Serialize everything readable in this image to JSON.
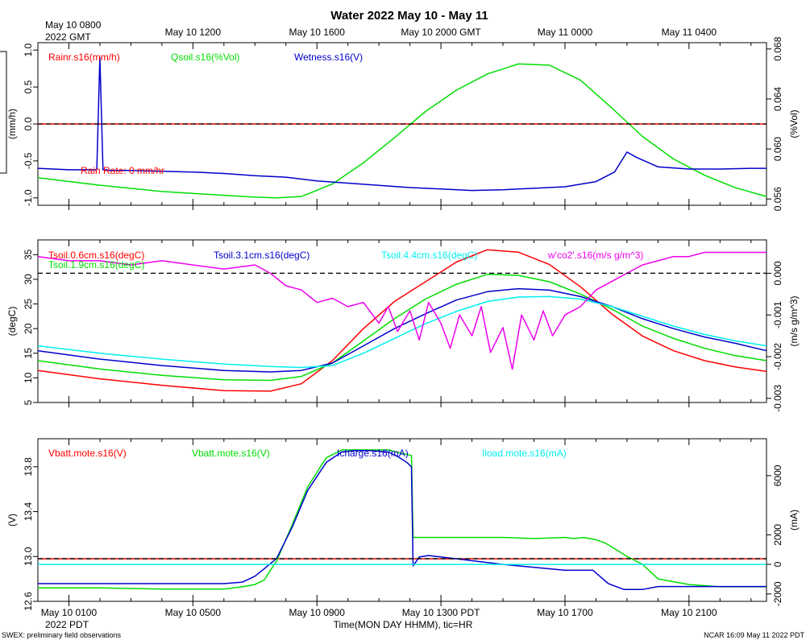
{
  "title": "Water 2022 May 10 - May 11",
  "top_axis": {
    "first_label": "May 10 0800",
    "first_sublabel": "2022 GMT",
    "labels": [
      "May 10 1200",
      "May 10 1600",
      "May 10 2000 GMT",
      "May 11 0000",
      "May 11 0400"
    ]
  },
  "bottom_axis": {
    "labels": [
      "May 10 0100",
      "May 10 0500",
      "May 10 0900",
      "May 10 1300 PDT",
      "May 10 1700",
      "May 10 2100"
    ],
    "sublabel": "2022 PDT",
    "xlabel": "Time(MON DAY HHMM), tic=HR"
  },
  "footer": {
    "left": "SWEX: preliminary field observations",
    "right": "NCAR 16:09 May 11 2022 PDT"
  },
  "colors": {
    "red": "#ff0000",
    "green": "#00dd00",
    "blue": "#0000cc",
    "cyan": "#00eeee",
    "magenta": "#ee00ee",
    "black": "#000000"
  },
  "chart_data": [
    {
      "type": "line",
      "name": "water-panel",
      "x_range_hours": [
        0,
        23.5
      ],
      "x_unit": "hours since May 10 0000 PDT",
      "left_axis": {
        "label": "(mm/h)",
        "range": [
          -1.1,
          1.1
        ],
        "ticks": [
          "-1.0",
          "-0.5",
          "0.0",
          "0.5",
          "1.0"
        ]
      },
      "right_axis": {
        "label": "(%Vol)",
        "range": [
          0.0555,
          0.0685
        ],
        "ticks": [
          "0.056",
          "0.060",
          "0.064",
          "0.068"
        ]
      },
      "legend": [
        "Rainr.s16(mm/h)",
        "Qsoil.s16(%Vol)",
        "Wetness.s16(V)"
      ],
      "annotation": "Rain Rate: 0 mm/hr",
      "series": [
        {
          "name": "Rainr.s16(mm/h)",
          "color": "#ff0000",
          "axis": "left",
          "x": [
            0,
            23.5
          ],
          "y": [
            0,
            0
          ]
        },
        {
          "name": "Qsoil.s16(%Vol)",
          "color": "#00dd00",
          "axis": "right",
          "x": [
            0,
            2,
            4,
            6,
            7,
            7.7,
            8.5,
            9.5,
            10.5,
            11.5,
            12.5,
            13.5,
            14.5,
            15.5,
            16.5,
            17.5,
            18.5,
            19.5,
            20.5,
            21.5,
            22.5,
            23.5
          ],
          "y": [
            0.0577,
            0.0571,
            0.0566,
            0.0563,
            0.05615,
            0.0561,
            0.0562,
            0.0572,
            0.0589,
            0.0609,
            0.063,
            0.0647,
            0.066,
            0.0668,
            0.0667,
            0.0655,
            0.0633,
            0.061,
            0.0592,
            0.0579,
            0.0569,
            0.0562
          ]
        },
        {
          "name": "Wetness.s16(V)",
          "color": "#0000cc",
          "axis": "left",
          "x": [
            0,
            1,
            1.9,
            2.0,
            2.1,
            2.2,
            2.3,
            3,
            4,
            5,
            6,
            7,
            8,
            9,
            10,
            11,
            12,
            13,
            14,
            15,
            16,
            17,
            18,
            18.6,
            19.0,
            19.3,
            20,
            21,
            22,
            23,
            23.5
          ],
          "y": [
            -0.6,
            -0.62,
            -0.62,
            0.9,
            -0.62,
            -0.62,
            -0.63,
            -0.63,
            -0.64,
            -0.65,
            -0.67,
            -0.7,
            -0.72,
            -0.77,
            -0.8,
            -0.83,
            -0.86,
            -0.88,
            -0.9,
            -0.89,
            -0.87,
            -0.85,
            -0.78,
            -0.65,
            -0.38,
            -0.45,
            -0.58,
            -0.61,
            -0.61,
            -0.6,
            -0.6
          ]
        }
      ]
    },
    {
      "type": "line",
      "name": "temperature-panel",
      "x_range_hours": [
        0,
        23.5
      ],
      "left_axis": {
        "label": "(degC)",
        "range": [
          5,
          38
        ],
        "ticks": [
          "5",
          "10",
          "15",
          "20",
          "25",
          "30",
          "35"
        ]
      },
      "right_axis": {
        "label": "(m/s g/m^3)",
        "range": [
          -0.0031,
          0.0008
        ],
        "ticks": [
          "-0.003",
          "-0.002",
          "-0.001",
          "0.000"
        ]
      },
      "legend": [
        "Tsoil.0.6cm.s16(degC)",
        "Tsoil.1.9cm.s16(degC)",
        "Tsoil.3.1cm.s16(degC)",
        "Tsoil.4.4cm.s16(degC)",
        "w'co2'.s16(m/s g/m^3)"
      ],
      "series": [
        {
          "name": "Tsoil.0.6cm.s16(degC)",
          "color": "#ff0000",
          "axis": "left",
          "x": [
            0,
            2,
            4,
            6,
            7.5,
            8.5,
            9.5,
            10.5,
            11.5,
            12.5,
            13.5,
            14.5,
            15.5,
            16.5,
            17.5,
            18.5,
            19.5,
            20.5,
            21.5,
            22.5,
            23.5
          ],
          "y": [
            11.5,
            9.8,
            8.5,
            7.4,
            7.3,
            8.8,
            13.5,
            20,
            25.5,
            29.5,
            33.5,
            36,
            35.5,
            33,
            28.5,
            23,
            18.5,
            15.5,
            13.5,
            12.2,
            11.3
          ]
        },
        {
          "name": "Tsoil.1.9cm.s16(degC)",
          "color": "#00dd00",
          "axis": "left",
          "x": [
            0,
            2,
            4,
            6,
            7.5,
            8.5,
            9.5,
            10.5,
            11.5,
            12.5,
            13.5,
            14.5,
            15.5,
            16.5,
            17.5,
            18.5,
            19.5,
            20.5,
            21.5,
            22.5,
            23.5
          ],
          "y": [
            13.5,
            11.8,
            10.5,
            9.6,
            9.5,
            10.3,
            13,
            17.5,
            22,
            26,
            29,
            31,
            30.8,
            29.5,
            27,
            24,
            20.5,
            18,
            16,
            14.5,
            13.5
          ]
        },
        {
          "name": "Tsoil.3.1cm.s16(degC)",
          "color": "#0000cc",
          "axis": "left",
          "x": [
            0,
            2,
            4,
            6,
            7.5,
            8.5,
            9.5,
            10.5,
            11.5,
            12.5,
            13.5,
            14.5,
            15.5,
            16.5,
            17.5,
            18.5,
            19.5,
            20.5,
            21.5,
            22.5,
            23.5
          ],
          "y": [
            15.5,
            13.8,
            12.5,
            11.5,
            11.2,
            11.5,
            13,
            16.5,
            20,
            23,
            25.8,
            27.5,
            28.1,
            27.8,
            26.5,
            24.5,
            22,
            20,
            18.3,
            17,
            15.5
          ]
        },
        {
          "name": "Tsoil.4.4cm.s16(degC)",
          "color": "#00eeee",
          "axis": "left",
          "x": [
            0,
            2,
            4,
            6,
            7.5,
            8.5,
            9.5,
            10.5,
            11.5,
            12.5,
            13.5,
            14.5,
            15.5,
            16.5,
            17.5,
            18.5,
            19.5,
            20.5,
            21.5,
            22.5,
            23.5
          ],
          "y": [
            16.5,
            15,
            13.8,
            12.8,
            12.3,
            12.1,
            12.5,
            15,
            18,
            21,
            23.5,
            25.5,
            26.4,
            26.5,
            26,
            24.5,
            22.5,
            20.5,
            18.8,
            17.5,
            16.5
          ]
        },
        {
          "name": "w'co2'.s16(m/s g/m^3)",
          "color": "#ee00ee",
          "axis": "right",
          "x": [
            0,
            1,
            2,
            3,
            4,
            5,
            6,
            7,
            7.5,
            8,
            8.5,
            9,
            9.5,
            10,
            10.5,
            11,
            11.3,
            11.6,
            12,
            12.3,
            12.6,
            13,
            13.3,
            13.6,
            14,
            14.3,
            14.6,
            15,
            15.3,
            15.6,
            16,
            16.3,
            16.6,
            17,
            17.5,
            18,
            18.5,
            19,
            19.5,
            20,
            20.5,
            21,
            21.5,
            22,
            22.5,
            23,
            23.5
          ],
          "y": [
            0.0004,
            0.0003,
            0.0003,
            0.0002,
            0.0003,
            0.0002,
            0.0001,
            0.0002,
            0.0,
            -0.0003,
            -0.0004,
            -0.0007,
            -0.0006,
            -0.0008,
            -0.0007,
            -0.0012,
            -0.0008,
            -0.0014,
            -0.0009,
            -0.0016,
            -0.0007,
            -0.0012,
            -0.0018,
            -0.001,
            -0.0015,
            -0.0008,
            -0.0019,
            -0.0013,
            -0.0023,
            -0.001,
            -0.0016,
            -0.0009,
            -0.0015,
            -0.001,
            -0.0008,
            -0.0004,
            -0.0002,
            0.0,
            0.0002,
            0.0003,
            0.0004,
            0.0004,
            0.0005,
            0.0005,
            0.0005,
            0.0005,
            0.0005
          ]
        }
      ]
    },
    {
      "type": "line",
      "name": "battery-panel",
      "x_range_hours": [
        0,
        23.5
      ],
      "left_axis": {
        "label": "(V)",
        "range": [
          12.6,
          14.05
        ],
        "ticks": [
          "12.6",
          "13.0",
          "13.4",
          "13.8"
        ]
      },
      "right_axis": {
        "label": "(mA)",
        "range": [
          -2500,
          8500
        ],
        "ticks": [
          "-2000",
          "0",
          "2000",
          "6000"
        ]
      },
      "legend": [
        "Vbatt.mote.s16(V)",
        "Vbatt.mote.s16(V)",
        "Icharge.s16(mA)",
        "Iload.mote.s16(mA)"
      ],
      "series": [
        {
          "name": "Vbatt.mote.s16(V)",
          "color": "#ff0000",
          "axis": "left",
          "x": [
            0,
            23.5
          ],
          "y": [
            12.98,
            12.98
          ]
        },
        {
          "name": "Vbatt.mote.s16(V)",
          "color": "#00dd00",
          "axis": "left",
          "x": [
            0,
            2,
            4,
            6,
            6.6,
            7,
            7.3,
            7.7,
            8.2,
            8.7,
            9.3,
            9.8,
            10.2,
            10.7,
            11.3,
            11.6,
            12.05,
            12.1,
            13,
            14,
            15,
            16,
            17,
            17.3,
            17.6,
            18,
            18.3,
            18.6,
            19,
            19.5,
            20,
            21,
            22,
            23,
            23.5
          ],
          "y": [
            12.72,
            12.72,
            12.71,
            12.71,
            12.73,
            12.75,
            12.79,
            12.96,
            13.28,
            13.62,
            13.88,
            13.95,
            13.95,
            13.95,
            13.95,
            13.93,
            13.9,
            13.17,
            13.17,
            13.17,
            13.17,
            13.16,
            13.17,
            13.16,
            13.17,
            13.15,
            13.12,
            13.07,
            13.0,
            12.93,
            12.8,
            12.75,
            12.73,
            12.73,
            12.73
          ]
        },
        {
          "name": "Icharge.s16(mA)",
          "color": "#0000cc",
          "axis": "right",
          "x": [
            0,
            2,
            4,
            6,
            6.6,
            7,
            7.3,
            7.7,
            8.2,
            8.7,
            9.3,
            9.8,
            10.2,
            10.7,
            11.3,
            11.6,
            11.9,
            12.05,
            12.1,
            12.3,
            12.6,
            13,
            14,
            15,
            16,
            17,
            17.5,
            17.9,
            18.4,
            18.9,
            19.5,
            20,
            21,
            22,
            23,
            23.5
          ],
          "y": [
            -1300,
            -1300,
            -1300,
            -1300,
            -1200,
            -800,
            -300,
            400,
            2500,
            5000,
            6900,
            7600,
            7700,
            7700,
            7600,
            7300,
            6900,
            6600,
            -100,
            500,
            600,
            500,
            250,
            0,
            -200,
            -400,
            -400,
            -400,
            -1300,
            -1700,
            -1700,
            -1500,
            -1500,
            -1500,
            -1500,
            -1500
          ]
        },
        {
          "name": "Iload.mote.s16(mA)",
          "color": "#00eeee",
          "axis": "right",
          "x": [
            0,
            23.5
          ],
          "y": [
            0,
            0
          ]
        }
      ]
    }
  ]
}
